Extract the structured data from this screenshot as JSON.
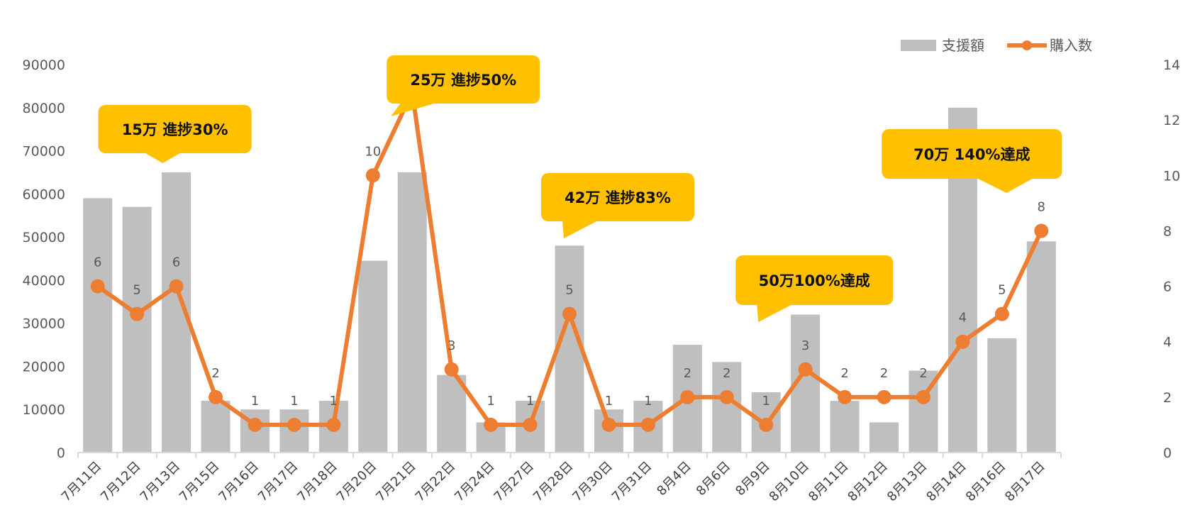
{
  "chart_data": {
    "type": "bar",
    "categories": [
      "7月11日",
      "7月12日",
      "7月13日",
      "7月15日",
      "7月16日",
      "7月17日",
      "7月18日",
      "7月20日",
      "7月21日",
      "7月22日",
      "7月24日",
      "7月27日",
      "7月28日",
      "7月30日",
      "7月31日",
      "8月4日",
      "8月6日",
      "8月9日",
      "8月10日",
      "8月11日",
      "8月12日",
      "8月13日",
      "8月14日",
      "8月16日",
      "8月17日"
    ],
    "series": [
      {
        "name": "支援額",
        "type": "bar",
        "axis": "left",
        "color": "#bfbfbf",
        "values": [
          59000,
          57000,
          65000,
          12000,
          10000,
          10000,
          12000,
          44500,
          65000,
          18000,
          7000,
          12000,
          48000,
          10000,
          12000,
          25000,
          21000,
          14000,
          32000,
          12000,
          7000,
          19000,
          80000,
          26500,
          49000
        ]
      },
      {
        "name": "購入数",
        "type": "line",
        "axis": "right",
        "color": "#ed7d31",
        "values": [
          6,
          5,
          6,
          2,
          1,
          1,
          1,
          10,
          13,
          3,
          1,
          1,
          5,
          1,
          1,
          2,
          2,
          1,
          3,
          2,
          2,
          2,
          4,
          5,
          8
        ],
        "data_labels": [
          "6",
          "5",
          "6",
          "2",
          "1",
          "1",
          "1",
          "10",
          "13",
          "3",
          "1",
          "1",
          "5",
          "1",
          "1",
          "2",
          "2",
          "1",
          "3",
          "2",
          "2",
          "2",
          "4",
          "5",
          "8"
        ]
      }
    ],
    "y_left": {
      "min": 0,
      "max": 90000,
      "ticks": [
        "0",
        "10000",
        "20000",
        "30000",
        "40000",
        "50000",
        "60000",
        "70000",
        "80000",
        "90000"
      ]
    },
    "y_right": {
      "min": 0,
      "max": 14,
      "ticks": [
        "0",
        "2",
        "4",
        "6",
        "8",
        "10",
        "12",
        "14"
      ]
    },
    "legend": {
      "position": "top-right",
      "entries": [
        "支援額",
        "購入数"
      ]
    },
    "grid": false,
    "annotations": [
      {
        "text": "15万 進捗30%",
        "category": "7月13日",
        "color": "#ffc000"
      },
      {
        "text": "25万 進捗50%",
        "category": "7月21日",
        "color": "#ffc000"
      },
      {
        "text": "42万 進捗83%",
        "category": "7月28日",
        "color": "#ffc000"
      },
      {
        "text": "50万100%達成",
        "category": "8月9日",
        "color": "#ffc000"
      },
      {
        "text": "70万 140%達成",
        "category": "8月17日",
        "color": "#ffc000"
      }
    ]
  }
}
